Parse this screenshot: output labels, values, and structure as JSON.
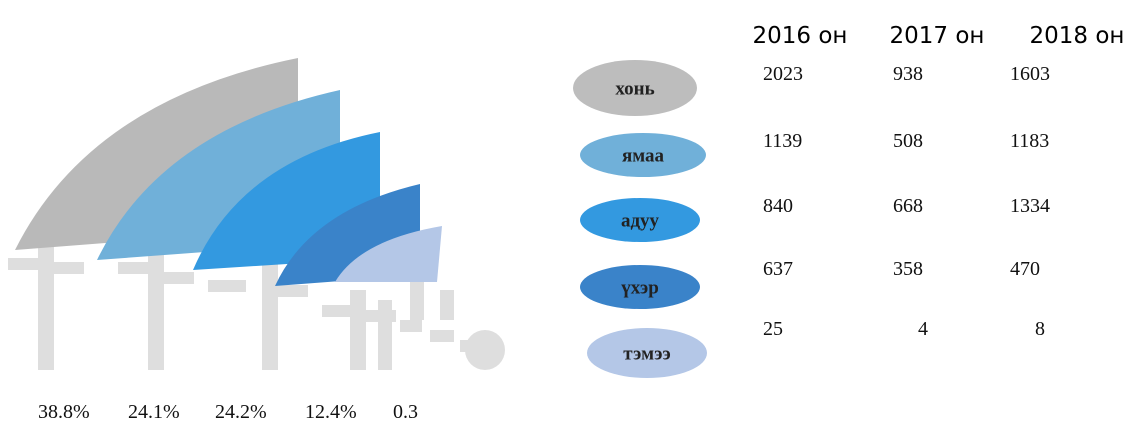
{
  "labels": [
    "хонь",
    "ямаа",
    "адуу",
    "үхэр",
    "тэмээ"
  ],
  "table": {
    "header": [
      "2016 он",
      "2017 он",
      "2018 он"
    ],
    "rows": [
      [
        2023,
        938,
        1603
      ],
      [
        1139,
        508,
        1183
      ],
      [
        840,
        668,
        1334
      ],
      [
        637,
        358,
        470
      ],
      [
        25,
        4,
        8
      ]
    ]
  },
  "shares": [
    "38.8%",
    "24.1%",
    "24.2%",
    "12.4%",
    "0.3"
  ]
}
